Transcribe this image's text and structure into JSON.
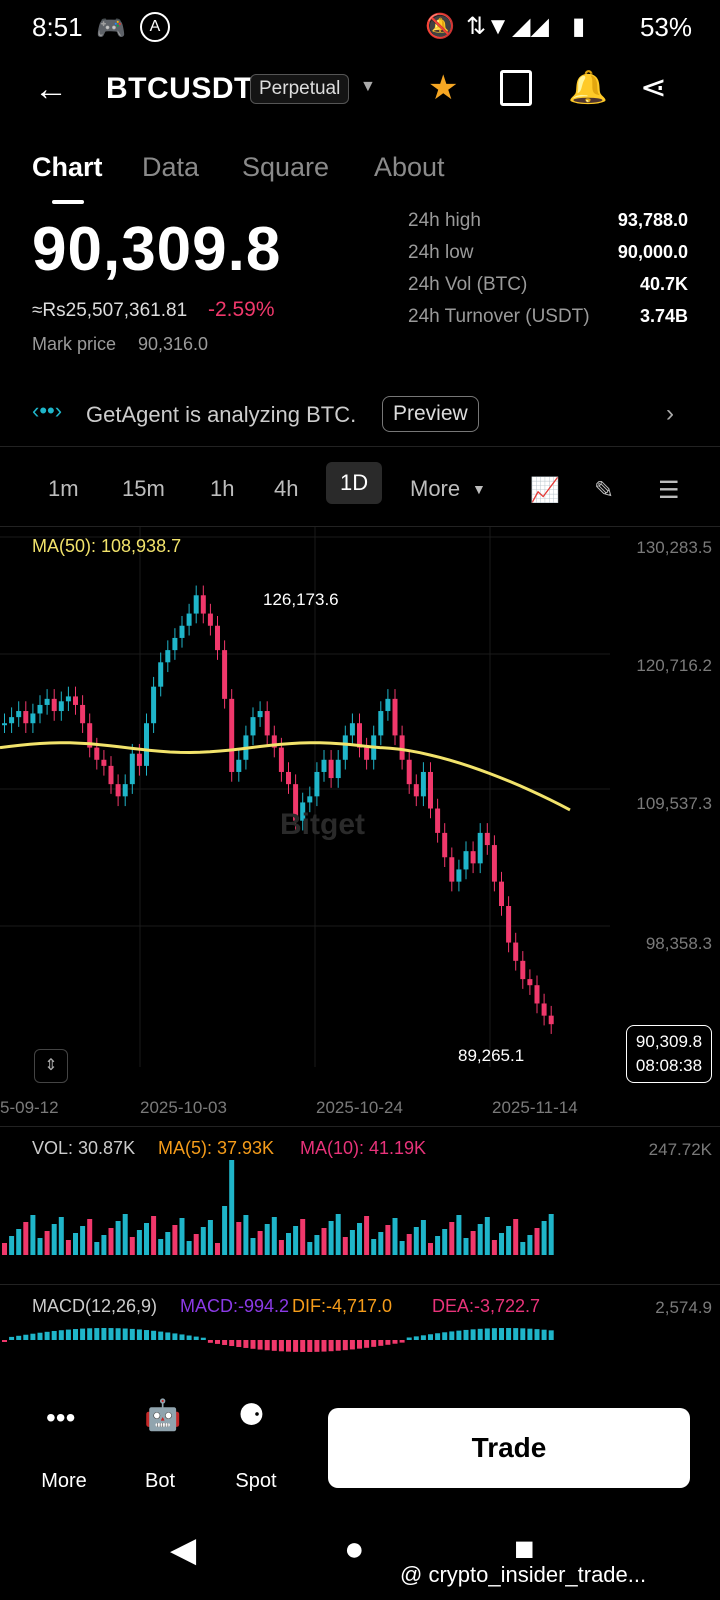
{
  "status": {
    "time": "8:51",
    "battery": "53%"
  },
  "header": {
    "symbol": "BTCUSDT",
    "badge": "Perpetual"
  },
  "tabs": [
    {
      "label": "Chart"
    },
    {
      "label": "Data"
    },
    {
      "label": "Square"
    },
    {
      "label": "About"
    }
  ],
  "price": {
    "last": "90,309.8",
    "inr": "≈Rs25,507,361.81",
    "change": "-2.59%",
    "mark_label": "Mark price",
    "mark_value": "90,316.0"
  },
  "stats": [
    {
      "label": "24h high",
      "value": "93,788.0"
    },
    {
      "label": "24h low",
      "value": "90,000.0"
    },
    {
      "label": "24h Vol (BTC)",
      "value": "40.7K"
    },
    {
      "label": "24h Turnover (USDT)",
      "value": "3.74B"
    }
  ],
  "agent": {
    "text": "GetAgent is analyzing BTC.",
    "button": "Preview"
  },
  "intervals": [
    {
      "label": "1m"
    },
    {
      "label": "15m"
    },
    {
      "label": "1h"
    },
    {
      "label": "4h"
    },
    {
      "label": "1D"
    },
    {
      "label": "More"
    }
  ],
  "chart": {
    "ma_label": "MA(50): 108,938.7",
    "y_labels": [
      "130,283.5",
      "120,716.2",
      "109,537.3",
      "98,358.3"
    ],
    "high_label": "126,173.6",
    "low_label": "89,265.1",
    "last_price": "90,309.8",
    "countdown": "08:08:38",
    "x_labels": [
      "5-09-12",
      "2025-10-03",
      "2025-10-24",
      "2025-11-14"
    ]
  },
  "vol": {
    "vol": "VOL: 30.87K",
    "ma5": "MA(5): 37.93K",
    "ma10": "MA(10): 41.19K",
    "ymax": "247.72K"
  },
  "macd": {
    "title": "MACD(12,26,9)",
    "macd": "MACD:-994.2",
    "dif": "DIF:-4,717.0",
    "dea": "DEA:-3,722.7",
    "ymax": "2,574.9"
  },
  "nav": {
    "more": "More",
    "bot": "Bot",
    "spot": "Spot",
    "trade": "Trade"
  },
  "watermark": "@ crypto_insider_trade...",
  "colors": {
    "up": "#1fb5c9",
    "down": "#f0386b",
    "ma": "#f2e36b",
    "ma5": "#f59c1a",
    "ma10": "#e8337a",
    "macd": "#8b3ae6"
  }
}
